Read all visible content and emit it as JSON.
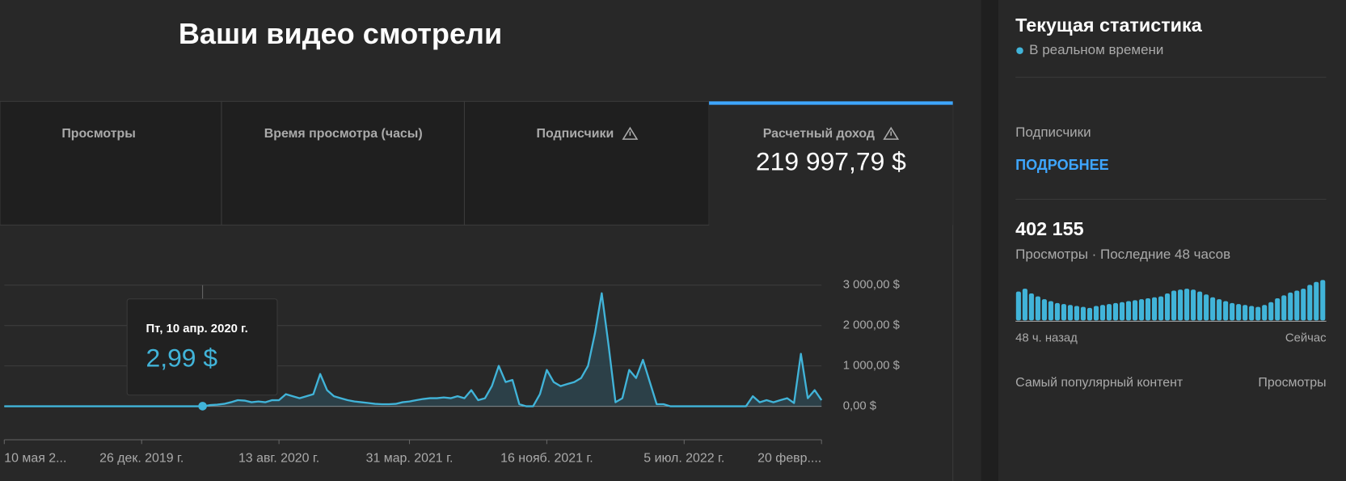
{
  "header": {
    "title": "Ваши видео смотрели"
  },
  "tabs": [
    {
      "label": "Просмотры"
    },
    {
      "label": "Время просмотра (часы)"
    },
    {
      "label": "Подписчики"
    },
    {
      "label": "Расчетный доход",
      "value": "219 997,79 $"
    }
  ],
  "chart_data": {
    "type": "line",
    "color": "#41b4d9",
    "values": [
      0,
      0,
      0,
      0,
      0,
      0,
      0,
      0,
      0,
      0,
      0,
      0,
      0,
      0,
      0,
      0,
      0,
      0,
      0,
      0,
      0,
      0,
      0,
      0,
      0,
      0,
      0,
      0,
      0,
      0,
      30,
      40,
      60,
      100,
      150,
      140,
      100,
      120,
      100,
      150,
      150,
      300,
      250,
      200,
      250,
      300,
      800,
      400,
      250,
      200,
      150,
      120,
      100,
      80,
      60,
      50,
      50,
      60,
      100,
      120,
      150,
      180,
      200,
      200,
      220,
      200,
      250,
      200,
      400,
      150,
      200,
      500,
      1000,
      600,
      650,
      50,
      0,
      0,
      300,
      900,
      600,
      500,
      550,
      600,
      700,
      1000,
      1800,
      2800,
      1500,
      100,
      200,
      900,
      700,
      1150,
      600,
      50,
      50,
      0,
      0,
      0,
      0,
      0,
      0,
      0,
      0,
      0,
      0,
      0,
      0,
      250,
      100,
      150,
      100,
      150,
      200,
      80,
      1300,
      200,
      400,
      150
    ],
    "xlim": [
      0,
      119
    ],
    "xticks": [
      {
        "value": 0,
        "label": "10 мая 2..."
      },
      {
        "value": 20,
        "label": "26 дек. 2019 г."
      },
      {
        "value": 40,
        "label": "13 авг. 2020 г."
      },
      {
        "value": 59,
        "label": "31 мар. 2021 г."
      },
      {
        "value": 79,
        "label": "16 нояб. 2021 г."
      },
      {
        "value": 99,
        "label": "5 июл. 2022 г."
      },
      {
        "value": 119,
        "label": "20 февр...."
      }
    ],
    "ylim": [
      0,
      3000
    ],
    "yticks": [
      {
        "value": 0,
        "label": "0,00 $"
      },
      {
        "value": 1000,
        "label": "1 000,00 $"
      },
      {
        "value": 2000,
        "label": "2 000,00 $"
      },
      {
        "value": 3000,
        "label": "3 000,00 $"
      }
    ],
    "grid": true,
    "tooltip": {
      "label": "Пт, 10 апр. 2020 г.",
      "value": 2.99,
      "value_label": "2,99 $"
    }
  },
  "realtime": {
    "title": "Текущая статистика",
    "subtitle": "В реальном времени",
    "subscribers_label": "Подписчики",
    "more_link": "ПОДРОБНЕЕ",
    "views": "402 155",
    "views_caption": "Просмотры · Последние 48 часов",
    "chart_data": {
      "type": "bar",
      "color": "#41b4d9",
      "values": [
        30,
        33,
        28,
        25,
        22,
        20,
        18,
        17,
        16,
        15,
        14,
        13,
        15,
        16,
        17,
        18,
        19,
        20,
        21,
        22,
        23,
        24,
        25,
        28,
        31,
        32,
        33,
        32,
        30,
        27,
        24,
        22,
        20,
        18,
        17,
        16,
        15,
        14,
        16,
        19,
        23,
        26,
        29,
        31,
        33,
        37,
        40,
        42
      ]
    },
    "start_label": "48 ч. назад",
    "end_label": "Сейчас",
    "top_content_label": "Самый популярный контент",
    "top_content_metric": "Просмотры"
  }
}
